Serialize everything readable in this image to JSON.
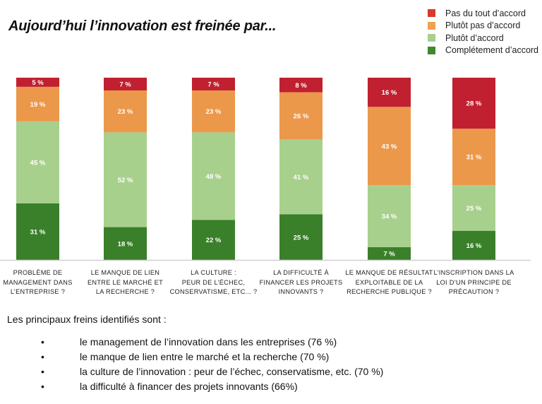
{
  "chart_data": {
    "type": "bar",
    "stacked": true,
    "orientation": "vertical",
    "title": "Aujourd’hui l’innovation est freinée par...",
    "xlabel": "",
    "ylabel": "",
    "ylim": [
      0,
      100
    ],
    "grid": false,
    "legend_position": "top-right",
    "value_suffix": " %",
    "categories": [
      [
        "PROBLÈME DE",
        "MANAGEMENT DANS",
        "L’ENTREPRISE ?"
      ],
      [
        "LE MANQUE DE LIEN",
        "ENTRE LE MARCHÉ ET",
        "LA RECHERCHE ?"
      ],
      [
        "LA CULTURE :",
        "PEUR DE L’ÉCHEC,",
        "CONSERVATISME, ETC... ?"
      ],
      [
        "LA DIFFICULTÉ À",
        "FINANCER LES PROJETS",
        "INNOVANTS ?"
      ],
      [
        "LE MANQUE DE RÉSULTAT",
        "EXPLOITABLE DE LA",
        "RECHERCHE PUBLIQUE ?"
      ],
      [
        "L’INSCRIPTION DANS LA",
        "LOI D’UN PRINCIPE DE",
        "PRÉCAUTION ?"
      ]
    ],
    "series": [
      {
        "name": "Complétement d’accord",
        "color": "#3a7f2a",
        "legend_color": "#3f8a2f",
        "values": [
          31,
          18,
          22,
          25,
          7,
          16
        ]
      },
      {
        "name": "Plutôt d’accord",
        "color": "#a8d08d",
        "legend_color": "#a8d08d",
        "values": [
          45,
          52,
          48,
          41,
          34,
          25
        ]
      },
      {
        "name": "Plutôt pas d’accord",
        "color": "#ec984b",
        "legend_color": "#f0a24f",
        "values": [
          19,
          23,
          23,
          26,
          43,
          31
        ]
      },
      {
        "name": "Pas du tout d’accord",
        "color": "#c02030",
        "legend_color": "#d93a2e",
        "values": [
          5,
          7,
          7,
          8,
          16,
          28
        ]
      }
    ],
    "legend_order": [
      "Pas du tout d’accord",
      "Plutôt pas d’accord",
      "Plutôt d’accord",
      "Complétement d’accord"
    ]
  },
  "summary": {
    "intro": "Les principaux freins identifiés sont :",
    "bullet_symbol": "•",
    "items": [
      "le management de l’innovation dans les entreprises (76 %)",
      "le manque de lien entre le marché et la recherche (70 %)",
      "la culture de l’innovation : peur de l’échec, conservatisme, etc. (70 %)",
      "la difficulté à financer des projets innovants (66%)"
    ]
  }
}
